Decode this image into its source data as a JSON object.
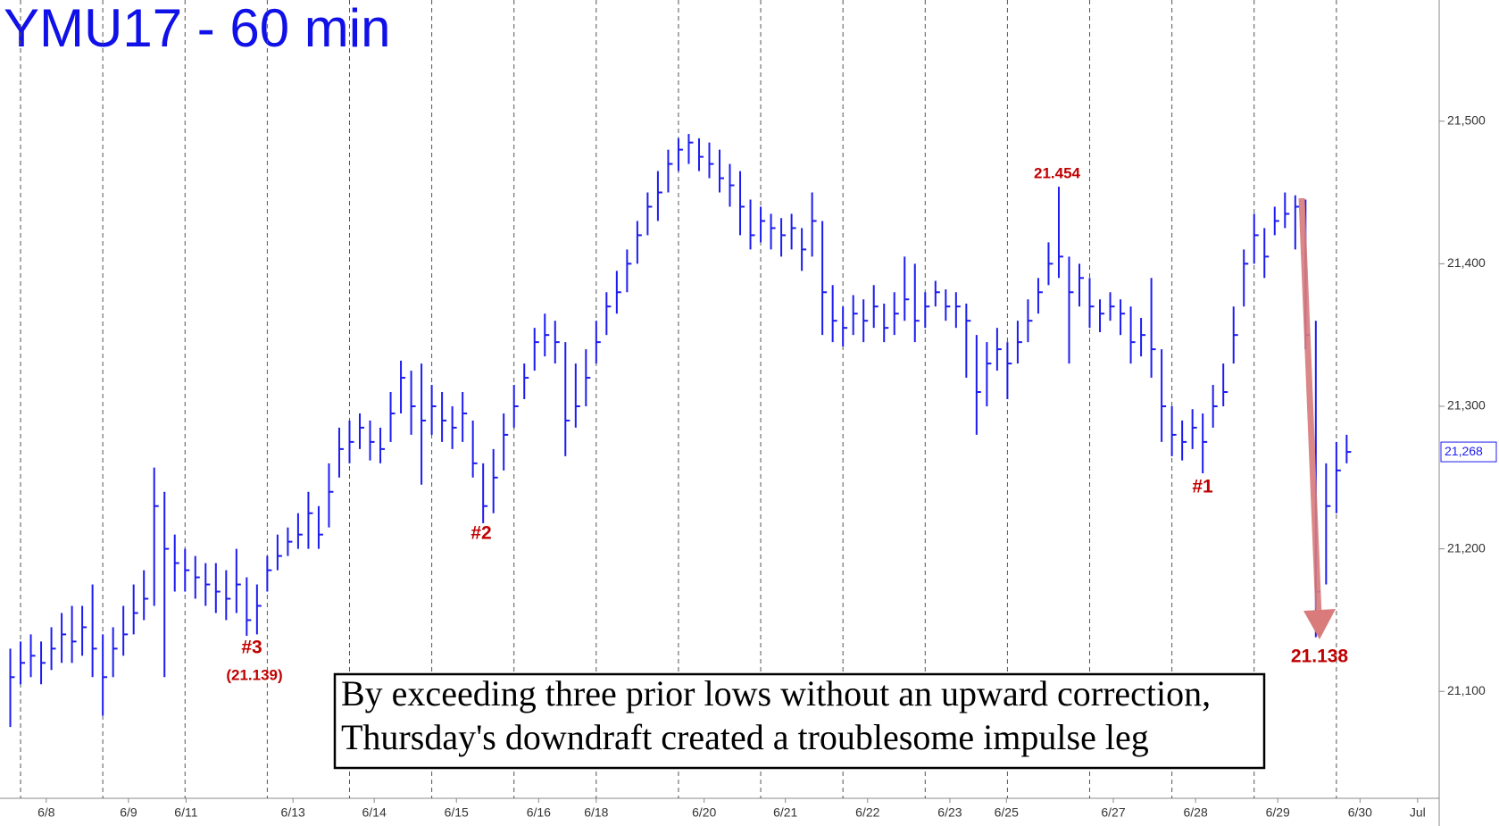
{
  "chart_data": {
    "type": "ohlc",
    "title": "YMU17 - 60 min",
    "color": "#1c1cf0",
    "xlim": [
      -2,
      138
    ],
    "ylim": [
      21025,
      21585
    ],
    "yticks": [
      {
        "value": 21100,
        "label": "21,100"
      },
      {
        "value": 21200,
        "label": "21,200"
      },
      {
        "value": 21300,
        "label": "21,300"
      },
      {
        "value": 21400,
        "label": "21,400"
      },
      {
        "value": 21500,
        "label": "21,500"
      }
    ],
    "xticks": [
      {
        "value": 2.5,
        "label": "6/8"
      },
      {
        "value": 10.5,
        "label": "6/9"
      },
      {
        "value": 16.1,
        "label": "6/11"
      },
      {
        "value": 26.5,
        "label": "6/13"
      },
      {
        "value": 34.4,
        "label": "6/14"
      },
      {
        "value": 42.4,
        "label": "6/15"
      },
      {
        "value": 50.4,
        "label": "6/16"
      },
      {
        "value": 56,
        "label": "6/18"
      },
      {
        "value": 66.5,
        "label": "6/20"
      },
      {
        "value": 74.4,
        "label": "6/21"
      },
      {
        "value": 82.4,
        "label": "6/22"
      },
      {
        "value": 90.4,
        "label": "6/23"
      },
      {
        "value": 95.9,
        "label": "6/25"
      },
      {
        "value": 106.3,
        "label": "6/27"
      },
      {
        "value": 114.3,
        "label": "6/28"
      },
      {
        "value": 122.3,
        "label": "6/29"
      },
      {
        "value": 130.3,
        "label": "6/30"
      },
      {
        "value": 135.9,
        "label": "Jul"
      }
    ],
    "xgrid": [
      0,
      8,
      16,
      24,
      32,
      40,
      48,
      56,
      64,
      72,
      80,
      88,
      96,
      104,
      112,
      120,
      128
    ],
    "x": [
      -1,
      0,
      1,
      2,
      3,
      4,
      5,
      6,
      7,
      8,
      9,
      10,
      11,
      12,
      13,
      14,
      15,
      16,
      17,
      18,
      19,
      20,
      21,
      22,
      23,
      24,
      25,
      26,
      27,
      28,
      29,
      30,
      31,
      32,
      33,
      34,
      35,
      36,
      37,
      38,
      39,
      40,
      41,
      42,
      43,
      44,
      45,
      46,
      47,
      48,
      49,
      50,
      51,
      52,
      53,
      54,
      55,
      56,
      57,
      58,
      59,
      60,
      61,
      62,
      63,
      64,
      65,
      66,
      67,
      68,
      69,
      70,
      71,
      72,
      73,
      74,
      75,
      76,
      77,
      78,
      79,
      80,
      81,
      82,
      83,
      84,
      85,
      86,
      87,
      88,
      89,
      90,
      91,
      92,
      93,
      94,
      95,
      96,
      97,
      98,
      99,
      100,
      101,
      102,
      103,
      104,
      105,
      106,
      107,
      108,
      109,
      110,
      111,
      112,
      113,
      114,
      115,
      116,
      117,
      118,
      119,
      120,
      121,
      122,
      123,
      124,
      125,
      126,
      127,
      128,
      129
    ],
    "close": [
      21110,
      21120,
      21125,
      21120,
      21130,
      21140,
      21135,
      21145,
      21130,
      21110,
      21130,
      21140,
      21155,
      21165,
      21230,
      21200,
      21190,
      21185,
      21180,
      21175,
      21170,
      21165,
      21175,
      21150,
      21160,
      21185,
      21195,
      21205,
      21210,
      21225,
      21210,
      21240,
      21270,
      21275,
      21285,
      21275,
      21270,
      21295,
      21320,
      21300,
      21290,
      21300,
      21290,
      21285,
      21295,
      21260,
      21230,
      21250,
      21280,
      21300,
      21320,
      21345,
      21350,
      21345,
      21290,
      21300,
      21320,
      21345,
      21370,
      21380,
      21400,
      21420,
      21440,
      21450,
      21470,
      21480,
      21485,
      21475,
      21470,
      21460,
      21455,
      21440,
      21420,
      21430,
      21425,
      21420,
      21425,
      21410,
      21430,
      21380,
      21360,
      21355,
      21365,
      21360,
      21370,
      21355,
      21365,
      21375,
      21360,
      21370,
      21380,
      21370,
      21370,
      21360,
      21310,
      21330,
      21340,
      21330,
      21345,
      21360,
      21380,
      21400,
      21405,
      21380,
      21390,
      21370,
      21365,
      21370,
      21365,
      21345,
      21350,
      21340,
      21300,
      21280,
      21275,
      21285,
      21275,
      21300,
      21310,
      21350,
      21400,
      21420,
      21405,
      21430,
      21435,
      21440,
      21350,
      21170,
      21230,
      21255,
      21268
    ],
    "high": [
      21130,
      21135,
      21140,
      21135,
      21145,
      21155,
      21160,
      21160,
      21175,
      21140,
      21145,
      21160,
      21175,
      21185,
      21257,
      21240,
      21210,
      21200,
      21195,
      21190,
      21190,
      21185,
      21200,
      21180,
      21175,
      21195,
      21210,
      21215,
      21225,
      21240,
      21230,
      21260,
      21285,
      21290,
      21295,
      21290,
      21285,
      21310,
      21332,
      21325,
      21330,
      21315,
      21310,
      21300,
      21310,
      21290,
      21260,
      21270,
      21295,
      21315,
      21330,
      21355,
      21365,
      21360,
      21345,
      21330,
      21340,
      21360,
      21380,
      21395,
      21410,
      21430,
      21450,
      21465,
      21480,
      21488,
      21491,
      21488,
      21485,
      21480,
      21470,
      21465,
      21445,
      21440,
      21435,
      21432,
      21435,
      21425,
      21450,
      21430,
      21385,
      21370,
      21378,
      21375,
      21385,
      21372,
      21380,
      21405,
      21400,
      21380,
      21388,
      21382,
      21380,
      21372,
      21350,
      21345,
      21355,
      21345,
      21360,
      21375,
      21390,
      21415,
      21454,
      21405,
      21400,
      21390,
      21375,
      21380,
      21375,
      21370,
      21362,
      21390,
      21340,
      21300,
      21290,
      21298,
      21295,
      21315,
      21330,
      21370,
      21410,
      21435,
      21425,
      21440,
      21450,
      21448,
      21445,
      21360,
      21260,
      21275,
      21280
    ],
    "low": [
      21075,
      21105,
      21110,
      21105,
      21115,
      21120,
      21120,
      21125,
      21110,
      21083,
      21110,
      21125,
      21140,
      21150,
      21160,
      21110,
      21170,
      21170,
      21165,
      21160,
      21155,
      21150,
      21155,
      21139,
      21140,
      21170,
      21185,
      21195,
      21200,
      21200,
      21200,
      21215,
      21250,
      21260,
      21270,
      21262,
      21260,
      21275,
      21295,
      21280,
      21245,
      21280,
      21275,
      21270,
      21275,
      21250,
      21218,
      21225,
      21255,
      21285,
      21305,
      21325,
      21335,
      21330,
      21265,
      21285,
      21300,
      21330,
      21350,
      21365,
      21380,
      21400,
      21420,
      21430,
      21450,
      21465,
      21470,
      21465,
      21460,
      21450,
      21440,
      21420,
      21410,
      21415,
      21410,
      21405,
      21410,
      21395,
      21405,
      21350,
      21345,
      21342,
      21350,
      21345,
      21355,
      21345,
      21350,
      21360,
      21345,
      21355,
      21370,
      21360,
      21355,
      21320,
      21280,
      21300,
      21325,
      21305,
      21330,
      21345,
      21365,
      21385,
      21390,
      21330,
      21370,
      21355,
      21352,
      21360,
      21350,
      21330,
      21335,
      21320,
      21275,
      21265,
      21262,
      21270,
      21253,
      21285,
      21300,
      21330,
      21370,
      21400,
      21390,
      21420,
      21425,
      21410,
      21340,
      21138,
      21175,
      21225,
      21260
    ],
    "last_price": {
      "value": 21268,
      "label": "21,268"
    },
    "annotations": [
      "21.454",
      "#2",
      "#3",
      "(21.139)",
      "#1",
      "21.138"
    ],
    "note": [
      "By exceeding three prior lows without an upward correction,",
      "Thursday's downdraft created a troublesome impulse leg"
    ]
  }
}
